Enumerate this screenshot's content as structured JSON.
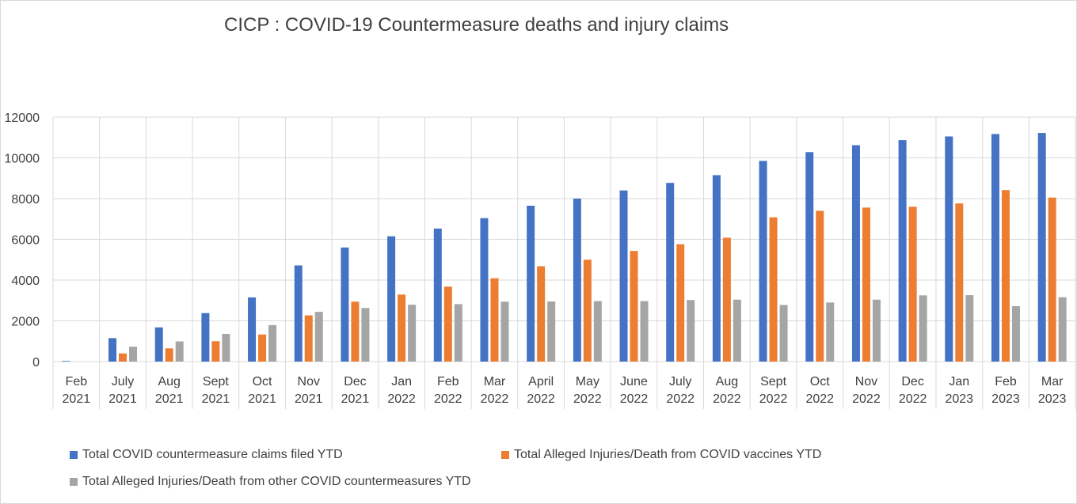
{
  "chart_data": {
    "type": "bar",
    "title": "CICP : COVID-19 Countermeasure deaths and injury claims",
    "xlabel": "",
    "ylabel": "",
    "ylim": [
      0,
      12000
    ],
    "yticks": [
      0,
      2000,
      4000,
      6000,
      8000,
      10000,
      12000
    ],
    "grid": true,
    "legend_position": "bottom",
    "categories": [
      [
        "Feb",
        "2021"
      ],
      [
        "July",
        "2021"
      ],
      [
        "Aug",
        "2021"
      ],
      [
        "Sept",
        "2021"
      ],
      [
        "Oct",
        "2021"
      ],
      [
        "Nov",
        "2021"
      ],
      [
        "Dec",
        "2021"
      ],
      [
        "Jan",
        "2022"
      ],
      [
        "Feb",
        "2022"
      ],
      [
        "Mar",
        "2022"
      ],
      [
        "April",
        "2022"
      ],
      [
        "May",
        "2022"
      ],
      [
        "June",
        "2022"
      ],
      [
        "July",
        "2022"
      ],
      [
        "Aug",
        "2022"
      ],
      [
        "Sept",
        "2022"
      ],
      [
        "Oct",
        "2022"
      ],
      [
        "Nov",
        "2022"
      ],
      [
        "Dec",
        "2022"
      ],
      [
        "Jan",
        "2023"
      ],
      [
        "Feb",
        "2023"
      ],
      [
        "Mar",
        "2023"
      ]
    ],
    "series": [
      {
        "name": "Total COVID countermeasure claims filed YTD",
        "color": "#4472c4",
        "values": [
          30,
          1150,
          1680,
          2380,
          3150,
          4720,
          5600,
          6150,
          6530,
          7040,
          7650,
          8000,
          8400,
          8770,
          9150,
          9850,
          10280,
          10620,
          10870,
          11050,
          11170,
          11220
        ]
      },
      {
        "name": "Total Alleged Injuries/Death from COVID vaccines YTD",
        "color": "#ed7d31",
        "values": [
          0,
          400,
          650,
          1000,
          1330,
          2270,
          2940,
          3290,
          3680,
          4090,
          4680,
          5000,
          5430,
          5760,
          6080,
          7080,
          7400,
          7560,
          7600,
          7760,
          8420,
          8050
        ]
      },
      {
        "name": "Total Alleged Injuries/Death from other COVID countermeasures YTD",
        "color": "#a5a5a5",
        "values": [
          0,
          730,
          990,
          1360,
          1790,
          2440,
          2630,
          2790,
          2820,
          2940,
          2950,
          2970,
          2970,
          3020,
          3040,
          2780,
          2900,
          3040,
          3250,
          3260,
          2720,
          3160
        ]
      }
    ]
  }
}
